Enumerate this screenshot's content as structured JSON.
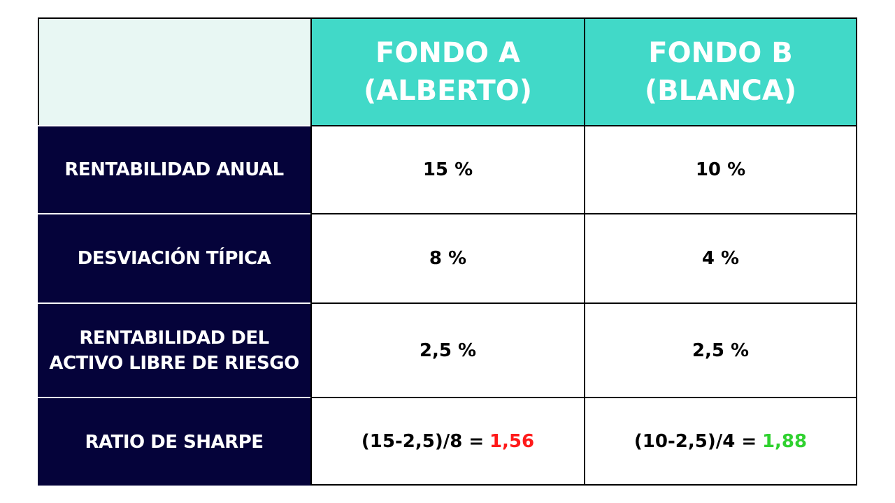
{
  "table": {
    "header": [
      "FONDO A\n(ALBERTO)",
      "FONDO B\n(BLANCA)"
    ],
    "rows": [
      {
        "label": "RENTABILIDAD ANUAL",
        "cells": [
          "15 %",
          "10 %"
        ]
      },
      {
        "label": "DESVIACIÓN TÍPICA",
        "cells": [
          "8 %",
          "4 %"
        ]
      },
      {
        "label": "RENTABILIDAD DEL\nACTIVO LIBRE DE RIESGO",
        "cells": [
          "2,5 %",
          "2,5 %"
        ]
      },
      {
        "label": "RATIO DE SHARPE",
        "cells": [
          {
            "formula": "(15-2,5)/8 =",
            "result": "1,56"
          },
          {
            "formula": "(10-2,5)/4 =",
            "result": "1,88"
          }
        ]
      }
    ]
  }
}
